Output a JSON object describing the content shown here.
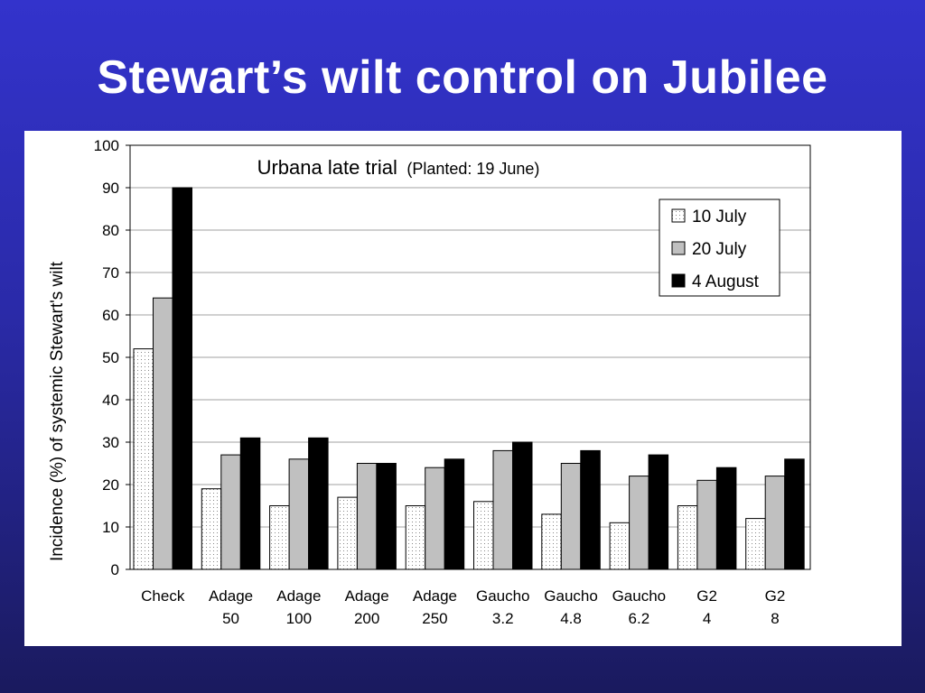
{
  "slide": {
    "title": "Stewart’s wilt control on Jubilee"
  },
  "chart_data": {
    "type": "bar",
    "title": "Urbana late trial",
    "subtitle": "(Planted: 19 June)",
    "ylabel": "Incidence (%) of systemic Stewart's wilt",
    "xlabel": "",
    "ylim": [
      0,
      100
    ],
    "yticks": [
      "0",
      "10",
      "20",
      "30",
      "40",
      "50",
      "60",
      "70",
      "80",
      "90",
      "100"
    ],
    "grid": true,
    "legend_position": "top-right",
    "categories": [
      [
        "Check"
      ],
      [
        "Adage",
        "50"
      ],
      [
        "Adage",
        "100"
      ],
      [
        "Adage",
        "200"
      ],
      [
        "Adage",
        "250"
      ],
      [
        "Gaucho",
        "3.2"
      ],
      [
        "Gaucho",
        "4.8"
      ],
      [
        "Gaucho",
        "6.2"
      ],
      [
        "G2",
        "4"
      ],
      [
        "G2",
        "8"
      ]
    ],
    "series": [
      {
        "name": "10 July",
        "fill": "dotted",
        "color": "#ffffff",
        "values": [
          52,
          19,
          15,
          17,
          15,
          16,
          13,
          11,
          15,
          12
        ]
      },
      {
        "name": "20 July",
        "fill": "solid",
        "color": "#c0c0c0",
        "values": [
          64,
          27,
          26,
          25,
          24,
          28,
          25,
          22,
          21,
          22
        ]
      },
      {
        "name": "4 August",
        "fill": "solid",
        "color": "#000000",
        "values": [
          90,
          31,
          31,
          25,
          26,
          30,
          28,
          27,
          24,
          26
        ]
      }
    ]
  }
}
